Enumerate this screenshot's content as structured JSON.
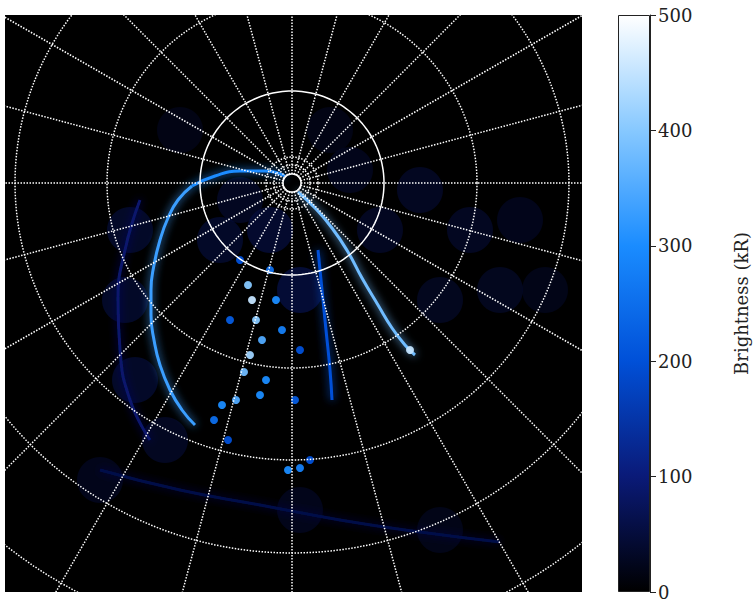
{
  "chart_data": {
    "type": "scatter",
    "xlim": [
      0,
      577
    ],
    "ylim": [
      0,
      577
    ],
    "tick_labels": false,
    "grid": true,
    "arcs": [
      {
        "brightness": 330,
        "points": [
          [
            187,
            406
          ],
          [
            173,
            392
          ],
          [
            163,
            374
          ],
          [
            155,
            352
          ],
          [
            149,
            327
          ],
          [
            146,
            302
          ],
          [
            146,
            277
          ],
          [
            149,
            252
          ],
          [
            155,
            227
          ],
          [
            165,
            202
          ],
          [
            177,
            182
          ],
          [
            190,
            167
          ]
        ]
      },
      {
        "brightness": 300,
        "points": [
          [
            187,
            406
          ],
          [
            210,
            416
          ],
          [
            235,
            421
          ],
          [
            260,
            421
          ],
          [
            280,
            416
          ]
        ]
      },
      {
        "brightness": 380,
        "points": [
          [
            293,
            400
          ],
          [
            310,
            384
          ],
          [
            327,
            364
          ],
          [
            343,
            340
          ],
          [
            357,
            314
          ],
          [
            373,
            287
          ],
          [
            387,
            264
          ],
          [
            400,
            247
          ],
          [
            410,
            237
          ]
        ]
      },
      {
        "brightness": 60,
        "points": [
          [
            95,
            122
          ],
          [
            175,
            102
          ],
          [
            255,
            87
          ],
          [
            335,
            72
          ],
          [
            415,
            60
          ],
          [
            495,
            50
          ]
        ]
      },
      {
        "brightness": 90,
        "points": [
          [
            135,
            392
          ],
          [
            120,
            342
          ],
          [
            113,
            292
          ],
          [
            115,
            242
          ],
          [
            125,
            192
          ],
          [
            145,
            152
          ]
        ]
      },
      {
        "brightness": 200,
        "points": [
          [
            313,
            342
          ],
          [
            317,
            302
          ],
          [
            321,
            262
          ],
          [
            325,
            222
          ],
          [
            327,
            192
          ]
        ]
      }
    ],
    "spots": [
      [
        243,
        307,
        400
      ],
      [
        247,
        292,
        450
      ],
      [
        251,
        272,
        400
      ],
      [
        257,
        252,
        350
      ],
      [
        245,
        237,
        420
      ],
      [
        239,
        220,
        380
      ],
      [
        261,
        212,
        300
      ],
      [
        271,
        292,
        300
      ],
      [
        277,
        262,
        280
      ],
      [
        265,
        322,
        250
      ],
      [
        235,
        332,
        200
      ],
      [
        231,
        192,
        350
      ],
      [
        217,
        187,
        300
      ],
      [
        209,
        172,
        250
      ],
      [
        223,
        152,
        200
      ],
      [
        283,
        122,
        300
      ],
      [
        295,
        124,
        280
      ],
      [
        305,
        132,
        200
      ],
      [
        255,
        197,
        300
      ],
      [
        290,
        192,
        220
      ],
      [
        295,
        242,
        200
      ],
      [
        225,
        272,
        220
      ],
      [
        405,
        242,
        450
      ]
    ],
    "haze": [
      [
        125,
        362,
        60
      ],
      [
        120,
        292,
        60
      ],
      [
        130,
        212,
        60
      ],
      [
        160,
        152,
        50
      ],
      [
        415,
        402,
        50
      ],
      [
        465,
        362,
        50
      ],
      [
        515,
        372,
        40
      ],
      [
        495,
        302,
        45
      ],
      [
        540,
        302,
        35
      ],
      [
        435,
        292,
        45
      ],
      [
        375,
        362,
        50
      ],
      [
        265,
        362,
        70
      ],
      [
        295,
        302,
        80
      ],
      [
        215,
        352,
        60
      ],
      [
        235,
        392,
        50
      ],
      [
        345,
        422,
        40
      ],
      [
        325,
        462,
        30
      ],
      [
        175,
        462,
        30
      ],
      [
        95,
        112,
        40
      ],
      [
        295,
        82,
        40
      ],
      [
        435,
        62,
        35
      ]
    ],
    "colorbar": {
      "label": "Brightness (kR)",
      "range": [
        0,
        500
      ],
      "ticks": [
        0,
        100,
        200,
        300,
        400,
        500
      ]
    }
  }
}
